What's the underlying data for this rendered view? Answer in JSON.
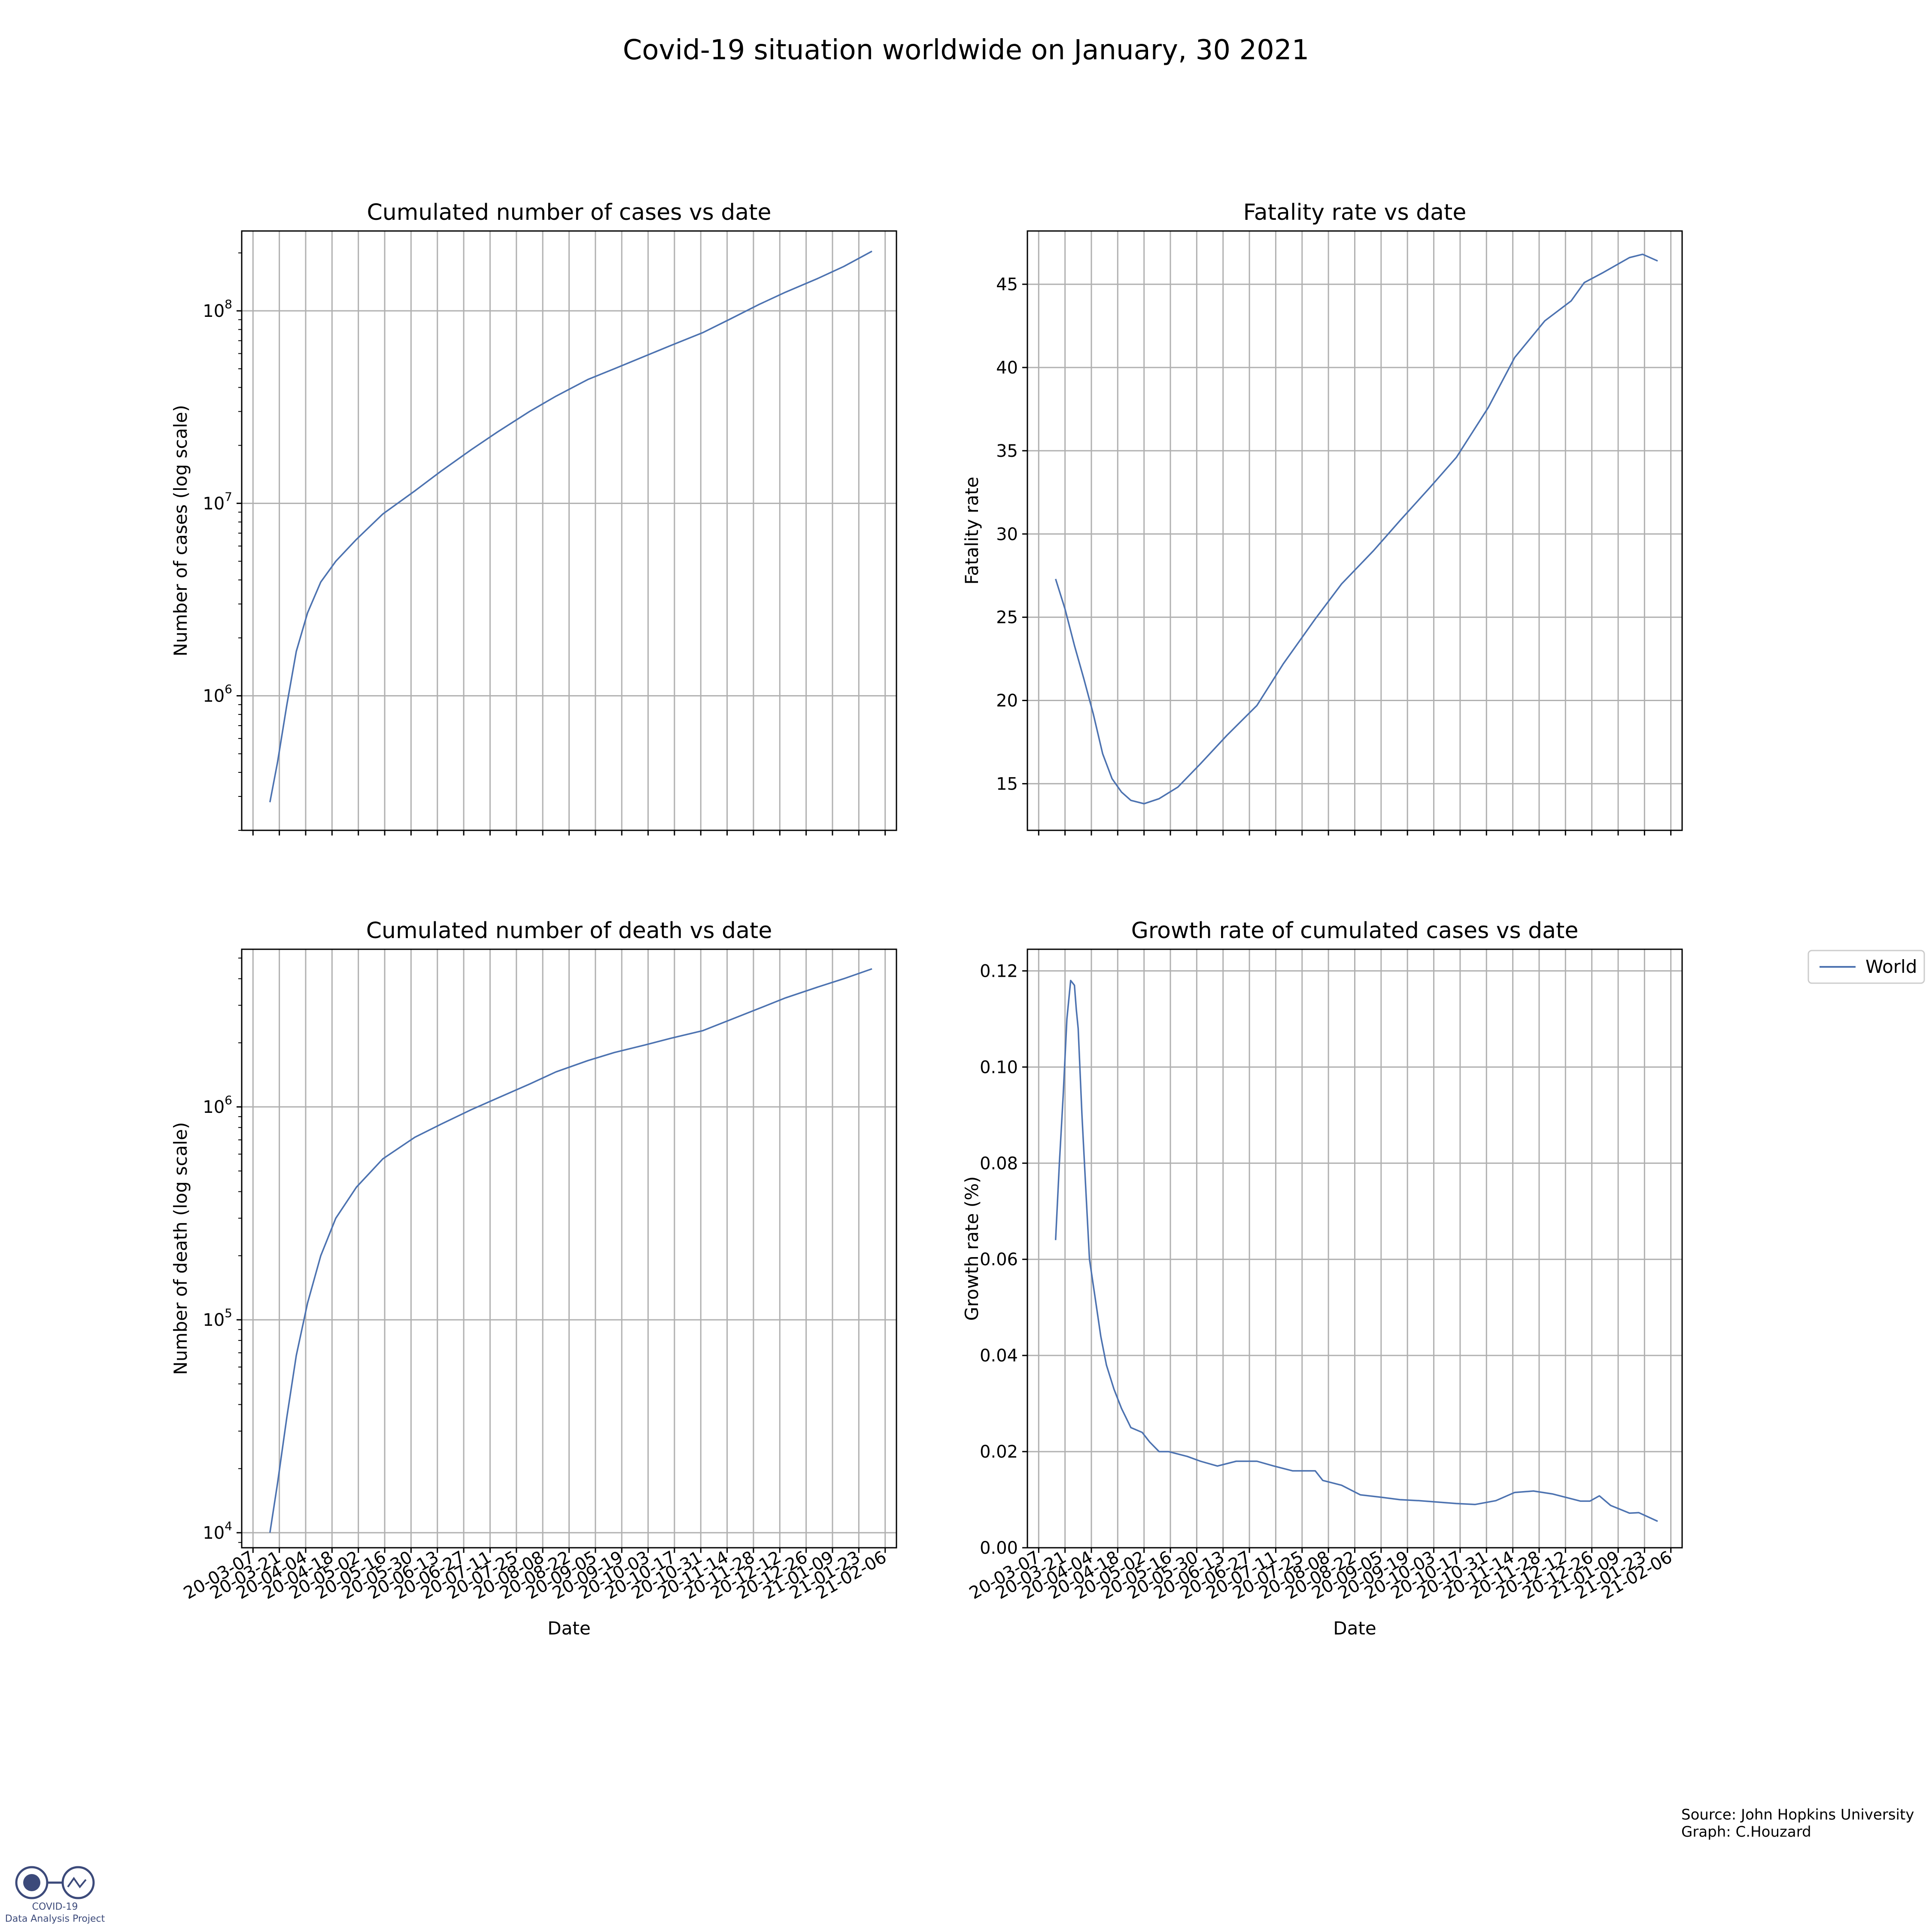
{
  "figure": {
    "title": "Covid-19 situation worldwide on January, 30 2021",
    "source_line1": "Source: John Hopkins University",
    "source_line2": "Graph: C.Houzard",
    "logo_line1": "COVID-19",
    "logo_line2": "Data Analysis Project",
    "line_color": "#4c72b0",
    "grid_color": "#b0b0b0",
    "legend": [
      "World"
    ]
  },
  "chart_data": [
    {
      "type": "line",
      "title": "Cumulated number of cases vs date",
      "xlabel": "",
      "ylabel": "Number of cases (log scale)",
      "yscale": "log",
      "ylim": [
        200000,
        260000000
      ],
      "xlim": [
        "2020-03-01",
        "2021-02-12"
      ],
      "x_ticks": [
        "20-03-07",
        "20-03-21",
        "20-04-04",
        "20-04-18",
        "20-05-02",
        "20-05-16",
        "20-05-30",
        "20-06-13",
        "20-06-27",
        "20-07-11",
        "20-07-25",
        "20-08-08",
        "20-08-22",
        "20-09-05",
        "20-09-19",
        "20-10-03",
        "20-10-17",
        "20-10-31",
        "20-11-14",
        "20-11-28",
        "20-12-12",
        "20-12-26",
        "21-01-09",
        "21-01-23",
        "21-02-06"
      ],
      "x_tick_labels_visible": false,
      "y_ticks": [
        {
          "value": 1000000,
          "label": "10^6"
        },
        {
          "value": 10000000,
          "label": "10^7"
        },
        {
          "value": 100000000,
          "label": "10^8"
        }
      ],
      "grid": true,
      "series": [
        {
          "name": "World",
          "x": [
            "2020-03-16",
            "2020-03-20",
            "2020-03-25",
            "2020-03-30",
            "2020-04-05",
            "2020-04-12",
            "2020-04-20",
            "2020-05-01",
            "2020-05-15",
            "2020-06-01",
            "2020-06-15",
            "2020-07-01",
            "2020-07-15",
            "2020-08-01",
            "2020-08-15",
            "2020-09-01",
            "2020-09-15",
            "2020-10-01",
            "2020-10-15",
            "2020-11-01",
            "2020-11-15",
            "2020-12-01",
            "2020-12-15",
            "2021-01-01",
            "2021-01-15",
            "2021-01-30"
          ],
          "y": [
            280000,
            450000,
            900000,
            1700000,
            2700000,
            3900000,
            5000000,
            6500000,
            8800000,
            11600000,
            14700000,
            19000000,
            23500000,
            30000000,
            36000000,
            44000000,
            50000000,
            58000000,
            66000000,
            77000000,
            90000000,
            108000000,
            125000000,
            147000000,
            170000000,
            204000000
          ]
        }
      ]
    },
    {
      "type": "line",
      "title": "Fatality rate vs date",
      "xlabel": "",
      "ylabel": "Fatality rate",
      "yscale": "linear",
      "ylim": [
        12.2,
        48.2
      ],
      "xlim": [
        "2020-03-01",
        "2021-02-12"
      ],
      "x_ticks": [
        "20-03-07",
        "20-03-21",
        "20-04-04",
        "20-04-18",
        "20-05-02",
        "20-05-16",
        "20-05-30",
        "20-06-13",
        "20-06-27",
        "20-07-11",
        "20-07-25",
        "20-08-08",
        "20-08-22",
        "20-09-05",
        "20-09-19",
        "20-10-03",
        "20-10-17",
        "20-10-31",
        "20-11-14",
        "20-11-28",
        "20-12-12",
        "20-12-26",
        "21-01-09",
        "21-01-23",
        "21-02-06"
      ],
      "x_tick_labels_visible": false,
      "y_ticks": [
        {
          "value": 15,
          "label": "15"
        },
        {
          "value": 20,
          "label": "20"
        },
        {
          "value": 25,
          "label": "25"
        },
        {
          "value": 30,
          "label": "30"
        },
        {
          "value": 35,
          "label": "35"
        },
        {
          "value": 40,
          "label": "40"
        },
        {
          "value": 45,
          "label": "45"
        }
      ],
      "grid": true,
      "series": [
        {
          "name": "World",
          "x": [
            "2020-03-16",
            "2020-03-21",
            "2020-03-26",
            "2020-03-31",
            "2020-04-05",
            "2020-04-10",
            "2020-04-15",
            "2020-04-20",
            "2020-04-25",
            "2020-05-02",
            "2020-05-10",
            "2020-05-20",
            "2020-06-01",
            "2020-06-15",
            "2020-07-01",
            "2020-07-15",
            "2020-08-01",
            "2020-08-15",
            "2020-09-01",
            "2020-09-15",
            "2020-10-01",
            "2020-10-15",
            "2020-11-01",
            "2020-11-15",
            "2020-12-01",
            "2020-12-15",
            "2020-12-22",
            "2021-01-01",
            "2021-01-15",
            "2021-01-22",
            "2021-01-30"
          ],
          "y": [
            27.3,
            25.5,
            23.3,
            21.3,
            19.2,
            16.8,
            15.3,
            14.5,
            14.0,
            13.8,
            14.1,
            14.8,
            16.2,
            17.9,
            19.7,
            22.2,
            24.9,
            27.0,
            29.0,
            30.8,
            32.8,
            34.6,
            37.6,
            40.6,
            42.8,
            44.0,
            45.1,
            45.7,
            46.6,
            46.8,
            46.4
          ]
        }
      ]
    },
    {
      "type": "line",
      "title": "Cumulated number of death vs date",
      "xlabel": "Date",
      "ylabel": "Number of death (log scale)",
      "yscale": "log",
      "ylim": [
        8500,
        5500000
      ],
      "xlim": [
        "2020-03-01",
        "2021-02-12"
      ],
      "x_ticks": [
        "20-03-07",
        "20-03-21",
        "20-04-04",
        "20-04-18",
        "20-05-02",
        "20-05-16",
        "20-05-30",
        "20-06-13",
        "20-06-27",
        "20-07-11",
        "20-07-25",
        "20-08-08",
        "20-08-22",
        "20-09-05",
        "20-09-19",
        "20-10-03",
        "20-10-17",
        "20-10-31",
        "20-11-14",
        "20-11-28",
        "20-12-12",
        "20-12-26",
        "21-01-09",
        "21-01-23",
        "21-02-06"
      ],
      "x_tick_labels_visible": true,
      "y_ticks": [
        {
          "value": 10000,
          "label": "10^4"
        },
        {
          "value": 100000,
          "label": "10^5"
        },
        {
          "value": 1000000,
          "label": "10^6"
        }
      ],
      "grid": true,
      "series": [
        {
          "name": "World",
          "x": [
            "2020-03-16",
            "2020-03-20",
            "2020-03-25",
            "2020-03-30",
            "2020-04-05",
            "2020-04-12",
            "2020-04-20",
            "2020-05-01",
            "2020-05-15",
            "2020-06-01",
            "2020-06-15",
            "2020-07-01",
            "2020-07-15",
            "2020-08-01",
            "2020-08-15",
            "2020-09-01",
            "2020-09-15",
            "2020-10-01",
            "2020-10-15",
            "2020-11-01",
            "2020-11-15",
            "2020-12-01",
            "2020-12-15",
            "2021-01-01",
            "2021-01-15",
            "2021-01-30"
          ],
          "y": [
            10000,
            17000,
            35000,
            68000,
            120000,
            200000,
            300000,
            420000,
            570000,
            720000,
            830000,
            970000,
            1100000,
            1280000,
            1460000,
            1650000,
            1800000,
            1950000,
            2100000,
            2280000,
            2550000,
            2900000,
            3250000,
            3650000,
            4000000,
            4450000
          ]
        }
      ]
    },
    {
      "type": "line",
      "title": "Growth rate of cumulated cases vs date",
      "xlabel": "Date",
      "ylabel": "Growth rate (%)",
      "yscale": "linear",
      "ylim": [
        0,
        0.1245
      ],
      "xlim": [
        "2020-03-01",
        "2021-02-12"
      ],
      "x_ticks": [
        "20-03-07",
        "20-03-21",
        "20-04-04",
        "20-04-18",
        "20-05-02",
        "20-05-16",
        "20-05-30",
        "20-06-13",
        "20-06-27",
        "20-07-11",
        "20-07-25",
        "20-08-08",
        "20-08-22",
        "20-09-05",
        "20-09-19",
        "20-10-03",
        "20-10-17",
        "20-10-31",
        "20-11-14",
        "20-11-28",
        "20-12-12",
        "20-12-26",
        "21-01-09",
        "21-01-23",
        "21-02-06"
      ],
      "x_tick_labels_visible": true,
      "y_ticks": [
        {
          "value": 0.0,
          "label": "0.00"
        },
        {
          "value": 0.02,
          "label": "0.02"
        },
        {
          "value": 0.04,
          "label": "0.04"
        },
        {
          "value": 0.06,
          "label": "0.06"
        },
        {
          "value": 0.08,
          "label": "0.08"
        },
        {
          "value": 0.1,
          "label": "0.10"
        },
        {
          "value": 0.12,
          "label": "0.12"
        }
      ],
      "grid": true,
      "legend_position": "outside upper right",
      "series": [
        {
          "name": "World",
          "x": [
            "2020-03-16",
            "2020-03-18",
            "2020-03-20",
            "2020-03-22",
            "2020-03-24",
            "2020-03-26",
            "2020-03-27",
            "2020-03-28",
            "2020-03-30",
            "2020-04-01",
            "2020-04-03",
            "2020-04-06",
            "2020-04-09",
            "2020-04-12",
            "2020-04-16",
            "2020-04-20",
            "2020-04-25",
            "2020-05-01",
            "2020-05-05",
            "2020-05-10",
            "2020-05-15",
            "2020-05-25",
            "2020-06-01",
            "2020-06-10",
            "2020-06-20",
            "2020-07-01",
            "2020-07-10",
            "2020-07-20",
            "2020-07-25",
            "2020-08-01",
            "2020-08-05",
            "2020-08-15",
            "2020-08-25",
            "2020-09-05",
            "2020-09-15",
            "2020-09-25",
            "2020-10-05",
            "2020-10-15",
            "2020-10-25",
            "2020-11-05",
            "2020-11-15",
            "2020-11-25",
            "2020-12-05",
            "2020-12-15",
            "2020-12-20",
            "2020-12-25",
            "2020-12-30",
            "2021-01-05",
            "2021-01-10",
            "2021-01-15",
            "2021-01-20",
            "2021-01-30"
          ],
          "y": [
            0.064,
            0.08,
            0.094,
            0.11,
            0.118,
            0.117,
            0.112,
            0.108,
            0.09,
            0.075,
            0.06,
            0.052,
            0.044,
            0.038,
            0.033,
            0.029,
            0.025,
            0.024,
            0.022,
            0.02,
            0.02,
            0.019,
            0.018,
            0.017,
            0.018,
            0.018,
            0.017,
            0.016,
            0.016,
            0.016,
            0.014,
            0.013,
            0.011,
            0.0105,
            0.01,
            0.0098,
            0.0095,
            0.0092,
            0.009,
            0.0098,
            0.0115,
            0.0118,
            0.0112,
            0.0102,
            0.0097,
            0.0097,
            0.0108,
            0.0088,
            0.008,
            0.0072,
            0.0073,
            0.0055
          ]
        }
      ]
    }
  ]
}
